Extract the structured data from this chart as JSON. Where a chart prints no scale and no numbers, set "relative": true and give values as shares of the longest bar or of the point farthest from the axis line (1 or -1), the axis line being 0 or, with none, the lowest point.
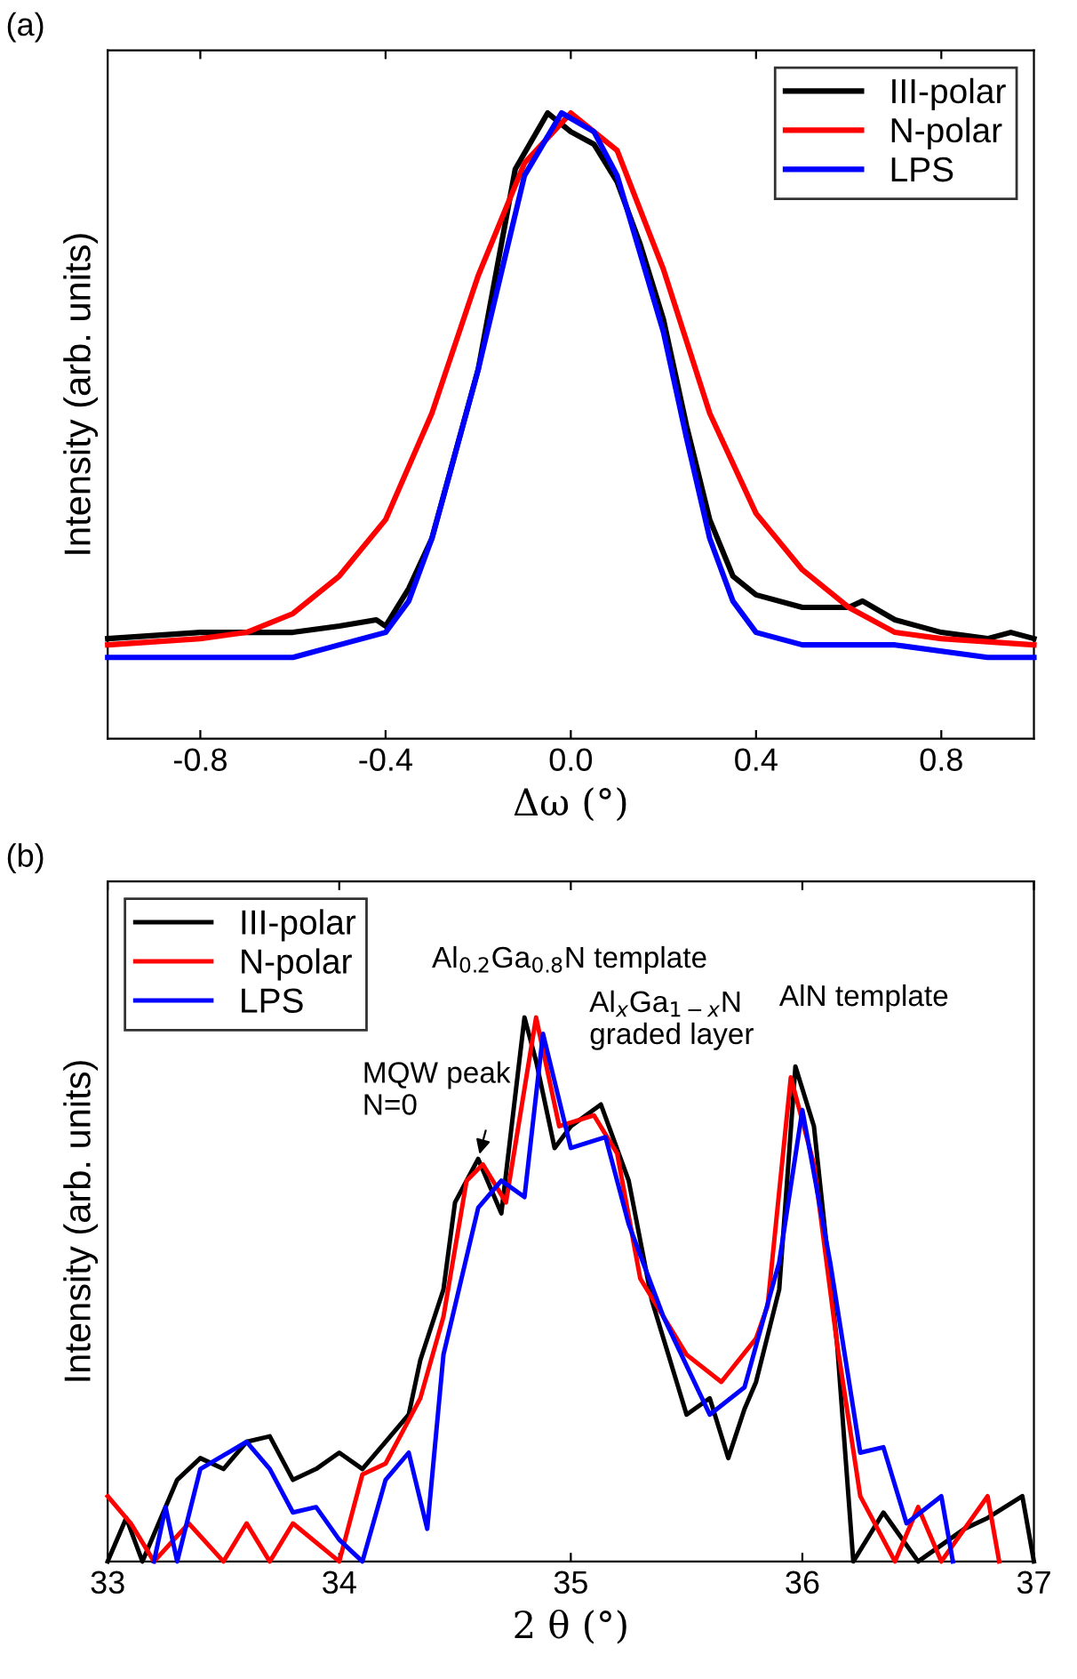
{
  "chart_data": [
    {
      "type": "line",
      "title": "(a)",
      "xlabel": "Δω (°)",
      "ylabel": "Intensity (arb. units)",
      "relative": true,
      "xlim": [
        -1,
        1
      ],
      "xticks": [
        -0.8,
        -0.4,
        {
          "value": 0,
          "label": "0.0"
        },
        0.4,
        0.8
      ],
      "legend": "top right",
      "grid": false,
      "marker": "none",
      "line_style": "solid",
      "series": [
        {
          "name": "III-polar",
          "color": "#000000",
          "x": [
            -1,
            -0.8,
            -0.6,
            -0.5,
            -0.42,
            -0.4,
            -0.35,
            -0.3,
            -0.2,
            -0.12,
            -0.05,
            0,
            0.05,
            0.1,
            0.15,
            0.2,
            0.25,
            0.3,
            0.35,
            0.4,
            0.5,
            0.6,
            0.63,
            0.7,
            0.8,
            0.9,
            0.95,
            1
          ],
          "values": [
            0.16,
            0.17,
            0.17,
            0.18,
            0.19,
            0.18,
            0.24,
            0.32,
            0.59,
            0.91,
            1.0,
            0.97,
            0.95,
            0.89,
            0.79,
            0.67,
            0.5,
            0.35,
            0.26,
            0.23,
            0.21,
            0.21,
            0.22,
            0.19,
            0.17,
            0.16,
            0.17,
            0.16
          ]
        },
        {
          "name": "N-polar",
          "color": "#ff0000",
          "x": [
            -1,
            -0.8,
            -0.7,
            -0.6,
            -0.5,
            -0.4,
            -0.3,
            -0.2,
            -0.1,
            0,
            0.1,
            0.2,
            0.3,
            0.4,
            0.5,
            0.6,
            0.7,
            0.8,
            1
          ],
          "values": [
            0.15,
            0.16,
            0.17,
            0.2,
            0.26,
            0.35,
            0.52,
            0.74,
            0.92,
            1.0,
            0.94,
            0.75,
            0.52,
            0.36,
            0.27,
            0.21,
            0.17,
            0.16,
            0.15
          ]
        },
        {
          "name": "LPS",
          "color": "#0000ff",
          "x": [
            -1,
            -0.8,
            -0.6,
            -0.5,
            -0.4,
            -0.35,
            -0.3,
            -0.2,
            -0.1,
            -0.02,
            0.05,
            0.1,
            0.2,
            0.25,
            0.3,
            0.35,
            0.4,
            0.5,
            0.7,
            0.9,
            1
          ],
          "values": [
            0.13,
            0.13,
            0.13,
            0.15,
            0.17,
            0.22,
            0.32,
            0.59,
            0.9,
            1.0,
            0.97,
            0.9,
            0.65,
            0.48,
            0.32,
            0.22,
            0.17,
            0.15,
            0.15,
            0.13,
            0.13
          ]
        }
      ]
    },
    {
      "type": "line",
      "title": "(b)",
      "xlabel": "2 θ (°)",
      "ylabel": "Intensity (arb. units)",
      "relative": true,
      "xlim": [
        33,
        37
      ],
      "xticks": [
        33,
        34,
        35,
        36,
        37
      ],
      "legend": "top left",
      "grid": false,
      "marker": "none",
      "line_style": "solid",
      "annotations": [
        {
          "text": "MQW peak\nN=0",
          "x": 34.6,
          "y": 0.74
        },
        {
          "text": "Al$_{0.2}$Ga$_{0.8}$N template",
          "x": 34.82,
          "y": 0.98
        },
        {
          "text": "Al$_{x}$Ga$_{1−x}$N\ngraded layer",
          "x": 35.13,
          "y": 0.84
        },
        {
          "text": "AlN template",
          "x": 35.97,
          "y": 0.91
        }
      ],
      "series": [
        {
          "name": "III-polar",
          "color": "#000000",
          "x": [
            33.0,
            33.08,
            33.15,
            33.3,
            33.4,
            33.5,
            33.6,
            33.7,
            33.8,
            33.9,
            34.0,
            34.1,
            34.2,
            34.3,
            34.35,
            34.45,
            34.5,
            34.6,
            34.7,
            34.8,
            34.85,
            34.93,
            35.0,
            35.13,
            35.25,
            35.35,
            35.45,
            35.5,
            35.6,
            35.68,
            35.75,
            35.8,
            35.9,
            35.97,
            36.05,
            36.15,
            36.22,
            36.35,
            36.5,
            36.7,
            36.8,
            36.95,
            37.0
          ],
          "values": [
            0.0,
            0.08,
            0.0,
            0.15,
            0.19,
            0.17,
            0.22,
            0.23,
            0.15,
            0.17,
            0.2,
            0.17,
            0.22,
            0.27,
            0.37,
            0.5,
            0.66,
            0.74,
            0.64,
            1.0,
            0.92,
            0.76,
            0.8,
            0.84,
            0.7,
            0.48,
            0.34,
            0.27,
            0.3,
            0.19,
            0.28,
            0.33,
            0.5,
            0.91,
            0.8,
            0.4,
            0.0,
            0.09,
            0.0,
            0.06,
            0.08,
            0.12,
            0.0
          ]
        },
        {
          "name": "N-polar",
          "color": "#ff0000",
          "x": [
            33.0,
            33.1,
            33.2,
            33.35,
            33.5,
            33.6,
            33.7,
            33.8,
            34.0,
            34.1,
            34.2,
            34.35,
            34.45,
            34.55,
            34.62,
            34.72,
            34.85,
            34.95,
            35.1,
            35.2,
            35.3,
            35.4,
            35.5,
            35.65,
            35.8,
            35.85,
            35.95,
            36.05,
            36.15,
            36.25,
            36.4,
            36.5,
            36.6,
            36.8,
            36.85
          ],
          "values": [
            0.12,
            0.07,
            0.0,
            0.07,
            0.0,
            0.07,
            0.0,
            0.07,
            0.0,
            0.16,
            0.18,
            0.3,
            0.45,
            0.7,
            0.73,
            0.66,
            1.0,
            0.8,
            0.82,
            0.75,
            0.52,
            0.45,
            0.38,
            0.33,
            0.41,
            0.47,
            0.89,
            0.73,
            0.4,
            0.12,
            0.0,
            0.1,
            0.0,
            0.12,
            0.0
          ]
        },
        {
          "name": "LPS",
          "color": "#0000ff",
          "x": [
            33.2,
            33.25,
            33.3,
            33.4,
            33.6,
            33.7,
            33.8,
            33.9,
            34.0,
            34.1,
            34.2,
            34.3,
            34.38,
            34.45,
            34.6,
            34.7,
            34.8,
            34.88,
            35.0,
            35.15,
            35.25,
            35.4,
            35.5,
            35.6,
            35.75,
            35.9,
            36.0,
            36.12,
            36.25,
            36.35,
            36.45,
            36.6,
            36.65
          ],
          "values": [
            0.0,
            0.1,
            0.0,
            0.17,
            0.22,
            0.17,
            0.09,
            0.1,
            0.04,
            0.0,
            0.15,
            0.2,
            0.06,
            0.38,
            0.65,
            0.7,
            0.67,
            0.97,
            0.76,
            0.78,
            0.62,
            0.45,
            0.36,
            0.27,
            0.32,
            0.55,
            0.83,
            0.55,
            0.2,
            0.21,
            0.07,
            0.12,
            0.0
          ]
        }
      ]
    }
  ]
}
